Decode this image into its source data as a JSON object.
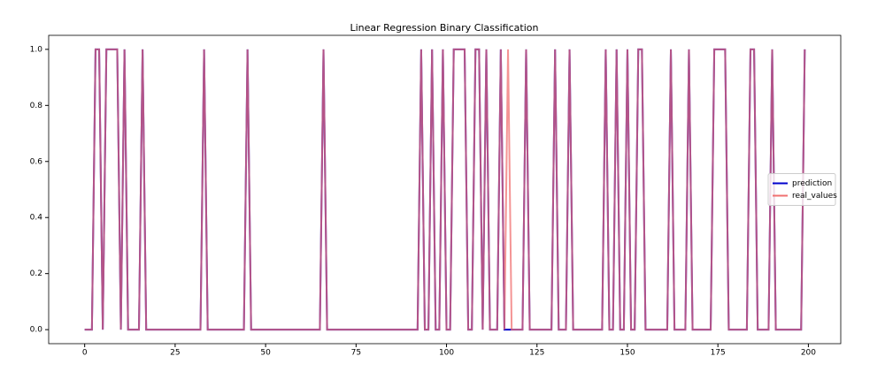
{
  "chart_data": {
    "type": "line",
    "title": "Linear Regression Binary Classification",
    "x": [
      0,
      1,
      2,
      3,
      4,
      5,
      6,
      7,
      8,
      9,
      10,
      11,
      12,
      13,
      14,
      15,
      16,
      17,
      18,
      19,
      20,
      21,
      22,
      23,
      24,
      25,
      26,
      27,
      28,
      29,
      30,
      31,
      32,
      33,
      34,
      35,
      36,
      37,
      38,
      39,
      40,
      41,
      42,
      43,
      44,
      45,
      46,
      47,
      48,
      49,
      50,
      51,
      52,
      53,
      54,
      55,
      56,
      57,
      58,
      59,
      60,
      61,
      62,
      63,
      64,
      65,
      66,
      67,
      68,
      69,
      70,
      71,
      72,
      73,
      74,
      75,
      76,
      77,
      78,
      79,
      80,
      81,
      82,
      83,
      84,
      85,
      86,
      87,
      88,
      89,
      90,
      91,
      92,
      93,
      94,
      95,
      96,
      97,
      98,
      99,
      100,
      101,
      102,
      103,
      104,
      105,
      106,
      107,
      108,
      109,
      110,
      111,
      112,
      113,
      114,
      115,
      116,
      117,
      118,
      119,
      120,
      121,
      122,
      123,
      124,
      125,
      126,
      127,
      128,
      129,
      130,
      131,
      132,
      133,
      134,
      135,
      136,
      137,
      138,
      139,
      140,
      141,
      142,
      143,
      144,
      145,
      146,
      147,
      148,
      149,
      150,
      151,
      152,
      153,
      154,
      155,
      156,
      157,
      158,
      159,
      160,
      161,
      162,
      163,
      164,
      165,
      166,
      167,
      168,
      169,
      170,
      171,
      172,
      173,
      174,
      175,
      176,
      177,
      178,
      179,
      180,
      181,
      182,
      183,
      184,
      185,
      186,
      187,
      188,
      189,
      190,
      191,
      192,
      193,
      194,
      195,
      196,
      197,
      198,
      199
    ],
    "series": [
      {
        "name": "prediction",
        "color": "#0000cd",
        "values": [
          0,
          0,
          0,
          1,
          1,
          0,
          1,
          1,
          1,
          1,
          0,
          1,
          0,
          0,
          0,
          0,
          1,
          0,
          0,
          0,
          0,
          0,
          0,
          0,
          0,
          0,
          0,
          0,
          0,
          0,
          0,
          0,
          0,
          1,
          0,
          0,
          0,
          0,
          0,
          0,
          0,
          0,
          0,
          0,
          0,
          1,
          0,
          0,
          0,
          0,
          0,
          0,
          0,
          0,
          0,
          0,
          0,
          0,
          0,
          0,
          0,
          0,
          0,
          0,
          0,
          0,
          1,
          0,
          0,
          0,
          0,
          0,
          0,
          0,
          0,
          0,
          0,
          0,
          0,
          0,
          0,
          0,
          0,
          0,
          0,
          0,
          0,
          0,
          0,
          0,
          0,
          0,
          0,
          1,
          0,
          0,
          1,
          0,
          0,
          1,
          0,
          0,
          1,
          1,
          1,
          1,
          0,
          0,
          1,
          1,
          0,
          1,
          0,
          0,
          0,
          1,
          0,
          0,
          0,
          0,
          0,
          0,
          1,
          0,
          0,
          0,
          0,
          0,
          0,
          0,
          1,
          0,
          0,
          0,
          1,
          0,
          0,
          0,
          0,
          0,
          0,
          0,
          0,
          0,
          1,
          0,
          0,
          1,
          0,
          0,
          1,
          0,
          0,
          1,
          1,
          0,
          0,
          0,
          0,
          0,
          0,
          0,
          1,
          0,
          0,
          0,
          0,
          1,
          0,
          0,
          0,
          0,
          0,
          0,
          1,
          1,
          1,
          1,
          0,
          0,
          0,
          0,
          0,
          0,
          1,
          1,
          0,
          0,
          0,
          0,
          1,
          0,
          0,
          0,
          0,
          0,
          0,
          0,
          0,
          1
        ]
      },
      {
        "name": "real_values",
        "color": "#f07070",
        "values": [
          0,
          0,
          0,
          1,
          1,
          0,
          1,
          1,
          1,
          1,
          0,
          1,
          0,
          0,
          0,
          0,
          1,
          0,
          0,
          0,
          0,
          0,
          0,
          0,
          0,
          0,
          0,
          0,
          0,
          0,
          0,
          0,
          0,
          1,
          0,
          0,
          0,
          0,
          0,
          0,
          0,
          0,
          0,
          0,
          0,
          1,
          0,
          0,
          0,
          0,
          0,
          0,
          0,
          0,
          0,
          0,
          0,
          0,
          0,
          0,
          0,
          0,
          0,
          0,
          0,
          0,
          1,
          0,
          0,
          0,
          0,
          0,
          0,
          0,
          0,
          0,
          0,
          0,
          0,
          0,
          0,
          0,
          0,
          0,
          0,
          0,
          0,
          0,
          0,
          0,
          0,
          0,
          0,
          1,
          0,
          0,
          1,
          0,
          0,
          1,
          0,
          0,
          1,
          1,
          1,
          1,
          0,
          0,
          1,
          1,
          0,
          1,
          0,
          0,
          0,
          1,
          0,
          1,
          0,
          0,
          0,
          0,
          1,
          0,
          0,
          0,
          0,
          0,
          0,
          0,
          1,
          0,
          0,
          0,
          1,
          0,
          0,
          0,
          0,
          0,
          0,
          0,
          0,
          0,
          1,
          0,
          0,
          1,
          0,
          0,
          1,
          0,
          0,
          1,
          1,
          0,
          0,
          0,
          0,
          0,
          0,
          0,
          1,
          0,
          0,
          0,
          0,
          1,
          0,
          0,
          0,
          0,
          0,
          0,
          1,
          1,
          1,
          1,
          0,
          0,
          0,
          0,
          0,
          0,
          1,
          1,
          0,
          0,
          0,
          0,
          1,
          0,
          0,
          0,
          0,
          0,
          0,
          0,
          0,
          1
        ]
      }
    ],
    "xlim": [
      -9.95,
      208.95
    ],
    "xticks": [
      0,
      25,
      50,
      75,
      100,
      125,
      150,
      175,
      200
    ],
    "ylim": [
      -0.05,
      1.05
    ],
    "yticks": [
      {
        "value": 0,
        "label": "0.0"
      },
      0.2,
      0.4,
      0.6,
      0.8,
      {
        "value": 1,
        "label": "1.0"
      }
    ],
    "legend": "center right"
  }
}
